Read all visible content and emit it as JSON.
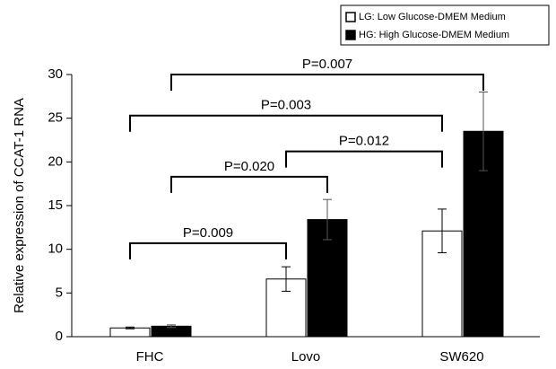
{
  "chart_data": {
    "type": "bar",
    "y_label": "Relative expression of CCAT-1 RNA",
    "categories": [
      "FHC",
      "Lovo",
      "SW620"
    ],
    "series": [
      {
        "name": "LG: Low Glucose-DMEM Medium",
        "color": "#ffffff",
        "values": [
          1.0,
          6.6,
          12.1
        ],
        "errors": [
          0.1,
          1.4,
          2.5
        ]
      },
      {
        "name": "HG: High Glucose-DMEM Medium",
        "color": "#000000",
        "values": [
          1.2,
          13.4,
          23.5
        ],
        "errors": [
          0.15,
          2.3,
          4.5
        ]
      }
    ],
    "ylim": [
      0,
      30
    ],
    "yticks": [
      0,
      5,
      10,
      15,
      20,
      25,
      30
    ],
    "legend": "top-right",
    "brackets": [
      {
        "label": "P=0.009",
        "from": [
          0,
          0
        ],
        "to": [
          1,
          0
        ],
        "y": 10.7
      },
      {
        "label": "P=0.020",
        "from": [
          0,
          1
        ],
        "to": [
          1,
          1
        ],
        "y": 18.3
      },
      {
        "label": "P=0.012",
        "from": [
          1,
          0
        ],
        "to": [
          2,
          0
        ],
        "y": 21.2
      },
      {
        "label": "P=0.003",
        "from": [
          0,
          0
        ],
        "to": [
          2,
          0
        ],
        "y": 25.3
      },
      {
        "label": "P=0.007",
        "from": [
          0,
          1
        ],
        "to": [
          2,
          1
        ],
        "y": 30.0
      }
    ]
  }
}
